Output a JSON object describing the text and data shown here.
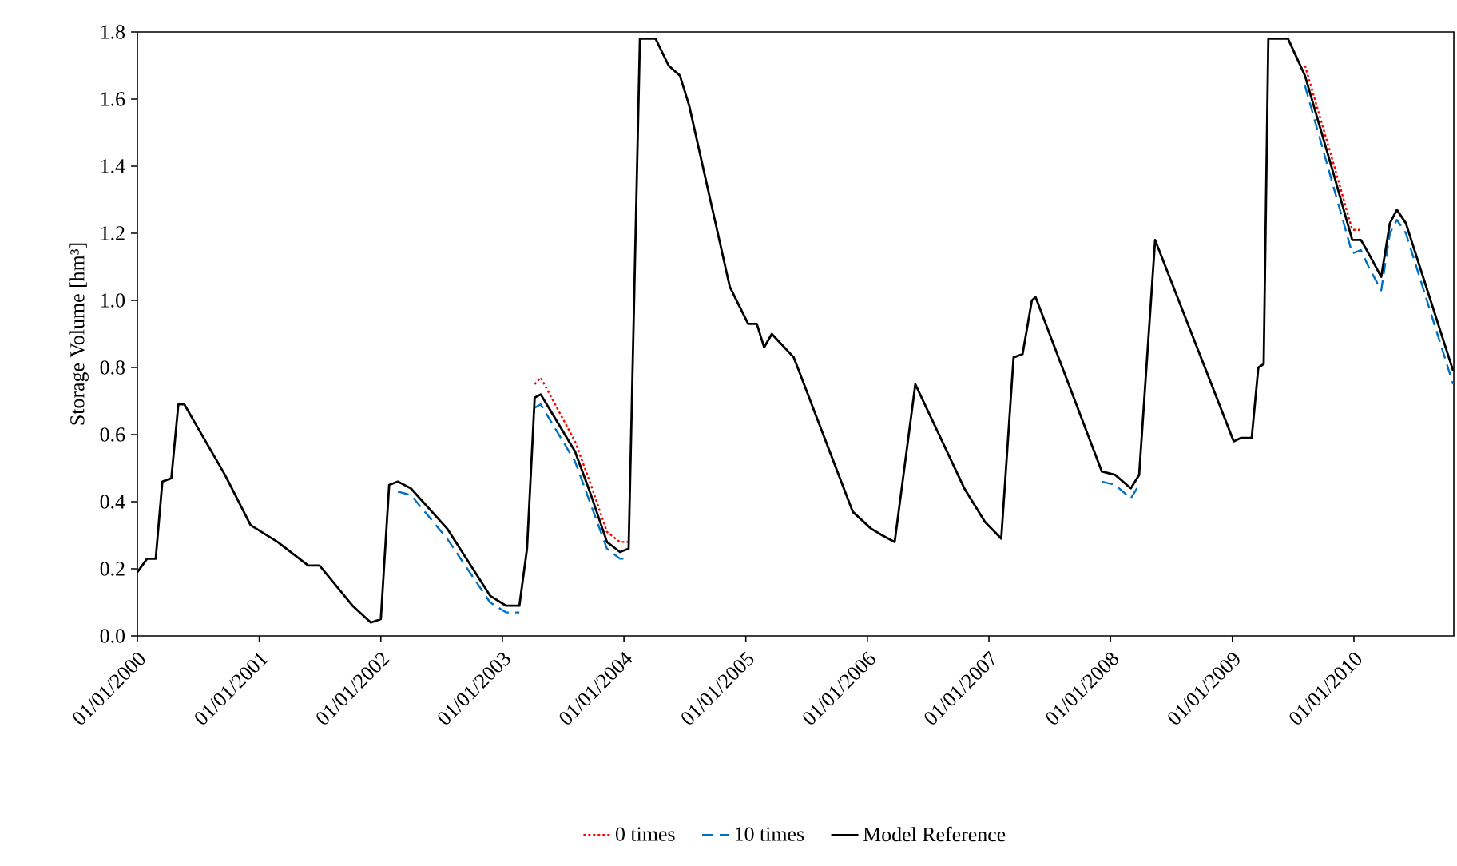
{
  "chart_data": {
    "type": "line",
    "ylabel": "Storage Volume [hm³]",
    "xlim": [
      "2000-01-01",
      "2010-10-28"
    ],
    "ylim": [
      0,
      1.8
    ],
    "xticks": [
      {
        "value": "2000-01-01",
        "label": "01/01/2000"
      },
      {
        "value": "2001-01-01",
        "label": "01/01/2001"
      },
      {
        "value": "2002-01-01",
        "label": "01/01/2002"
      },
      {
        "value": "2003-01-01",
        "label": "01/01/2003"
      },
      {
        "value": "2004-01-01",
        "label": "01/01/2004"
      },
      {
        "value": "2005-01-01",
        "label": "01/01/2005"
      },
      {
        "value": "2006-01-01",
        "label": "01/01/2006"
      },
      {
        "value": "2007-01-01",
        "label": "01/01/2007"
      },
      {
        "value": "2008-01-01",
        "label": "01/01/2008"
      },
      {
        "value": "2009-01-01",
        "label": "01/01/2009"
      },
      {
        "value": "2010-01-01",
        "label": "01/01/2010"
      }
    ],
    "yticks": [
      {
        "value": 0,
        "label": "0.0"
      },
      {
        "value": 0.2,
        "label": "0.2"
      },
      {
        "value": 0.4,
        "label": "0.4"
      },
      {
        "value": 0.6,
        "label": "0.6"
      },
      {
        "value": 0.8,
        "label": "0.8"
      },
      {
        "value": 1.0,
        "label": "1.0"
      },
      {
        "value": 1.2,
        "label": "1.2"
      },
      {
        "value": 1.4,
        "label": "1.4"
      },
      {
        "value": 1.6,
        "label": "1.6"
      },
      {
        "value": 1.8,
        "label": "1.8"
      }
    ],
    "x": [
      "2000-01-01",
      "2000-01-30",
      "2000-02-25",
      "2000-03-16",
      "2000-04-12",
      "2000-05-03",
      "2000-05-21",
      "2000-09-20",
      "2000-12-06",
      "2001-02-25",
      "2001-05-28",
      "2001-07-01",
      "2001-10-08",
      "2001-12-02",
      "2002-01-01",
      "2002-01-26",
      "2002-02-21",
      "2002-04-01",
      "2002-07-19",
      "2002-11-25",
      "2003-01-12",
      "2003-02-21",
      "2003-03-16",
      "2003-04-08",
      "2003-04-26",
      "2003-08-07",
      "2003-09-24",
      "2003-11-11",
      "2003-12-20",
      "2004-01-15",
      "2004-02-18",
      "2004-04-05",
      "2004-05-14",
      "2004-06-17",
      "2004-07-15",
      "2004-11-14",
      "2005-01-08",
      "2005-02-03",
      "2005-02-25",
      "2005-03-20",
      "2005-05-25",
      "2005-11-18",
      "2006-01-12",
      "2006-02-14",
      "2006-03-24",
      "2006-05-25",
      "2006-10-19",
      "2006-12-20",
      "2007-02-07",
      "2007-03-16",
      "2007-04-12",
      "2007-05-10",
      "2007-05-21",
      "2007-12-06",
      "2008-01-15",
      "2008-03-02",
      "2008-03-27",
      "2008-05-14",
      "2009-01-05",
      "2009-01-26",
      "2009-02-28",
      "2009-03-20",
      "2009-04-05",
      "2009-04-19",
      "2009-06-17",
      "2009-08-07",
      "2009-11-03",
      "2009-12-27",
      "2010-01-22",
      "2010-02-14",
      "2010-03-24",
      "2010-04-19",
      "2010-05-10",
      "2010-06-06",
      "2010-10-26"
    ],
    "series": [
      {
        "name": "0 times",
        "color": "#ff0000",
        "line_style": "dotted",
        "values": [
          null,
          null,
          null,
          null,
          null,
          null,
          null,
          null,
          null,
          null,
          null,
          null,
          null,
          null,
          null,
          null,
          null,
          null,
          null,
          null,
          null,
          null,
          null,
          0.75,
          0.77,
          0.58,
          0.45,
          0.31,
          0.28,
          0.28,
          null,
          null,
          null,
          null,
          null,
          null,
          null,
          null,
          null,
          null,
          null,
          null,
          null,
          null,
          null,
          null,
          null,
          null,
          null,
          null,
          null,
          null,
          null,
          null,
          null,
          null,
          null,
          null,
          null,
          null,
          null,
          null,
          null,
          null,
          null,
          1.7,
          1.4,
          1.21,
          1.21,
          null,
          null,
          null,
          null,
          null,
          null
        ]
      },
      {
        "name": "10 times",
        "color": "#0070c0",
        "line_style": "dashed",
        "values": [
          null,
          null,
          null,
          null,
          null,
          null,
          null,
          null,
          null,
          null,
          null,
          null,
          null,
          null,
          null,
          null,
          0.43,
          0.42,
          0.29,
          0.1,
          0.07,
          0.07,
          null,
          0.68,
          0.69,
          0.52,
          0.39,
          0.26,
          0.23,
          0.23,
          null,
          null,
          null,
          null,
          null,
          null,
          null,
          null,
          null,
          null,
          null,
          null,
          null,
          null,
          null,
          null,
          null,
          null,
          null,
          null,
          null,
          null,
          null,
          0.46,
          0.45,
          0.41,
          0.45,
          null,
          null,
          null,
          null,
          null,
          null,
          null,
          null,
          1.64,
          1.33,
          1.14,
          1.15,
          1.1,
          1.03,
          1.2,
          1.24,
          1.2,
          0.75
        ]
      },
      {
        "name": "Model Reference",
        "color": "#000000",
        "line_style": "solid",
        "values": [
          0.19,
          0.23,
          0.23,
          0.46,
          0.47,
          0.69,
          0.69,
          0.48,
          0.33,
          0.28,
          0.21,
          0.21,
          0.09,
          0.04,
          0.05,
          0.45,
          0.46,
          0.44,
          0.32,
          0.12,
          0.09,
          0.09,
          0.26,
          0.71,
          0.72,
          0.55,
          0.42,
          0.28,
          0.25,
          0.26,
          1.78,
          1.78,
          1.7,
          1.67,
          1.58,
          1.04,
          0.93,
          0.93,
          0.86,
          0.9,
          0.83,
          0.37,
          0.32,
          0.3,
          0.28,
          0.75,
          0.44,
          0.34,
          0.29,
          0.83,
          0.84,
          1.0,
          1.01,
          0.49,
          0.48,
          0.44,
          0.48,
          1.18,
          0.58,
          0.59,
          0.59,
          0.8,
          0.81,
          1.78,
          1.78,
          1.67,
          1.37,
          1.18,
          1.18,
          1.14,
          1.07,
          1.23,
          1.27,
          1.23,
          0.79
        ]
      }
    ],
    "legend": "bottom"
  }
}
